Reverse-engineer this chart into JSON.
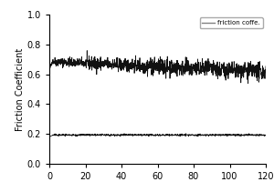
{
  "title": "",
  "xlabel": "",
  "ylabel": "Friction Coefficient",
  "xlim": [
    0,
    120
  ],
  "ylim": [
    0.0,
    1.0
  ],
  "yticks": [
    0.0,
    0.2,
    0.4,
    0.6,
    0.8,
    1.0
  ],
  "xticks": [
    0,
    20,
    40,
    60,
    80,
    100,
    120
  ],
  "line1_base": 0.685,
  "line1_start": 0.63,
  "line1_end": 0.615,
  "line1_noise": 0.025,
  "line2_base": 0.193,
  "line2_noise": 0.003,
  "legend_label": "friction coffe.",
  "line1_color": "#111111",
  "line2_color": "#111111",
  "bg_color": "#ffffff",
  "n_points": 1200
}
